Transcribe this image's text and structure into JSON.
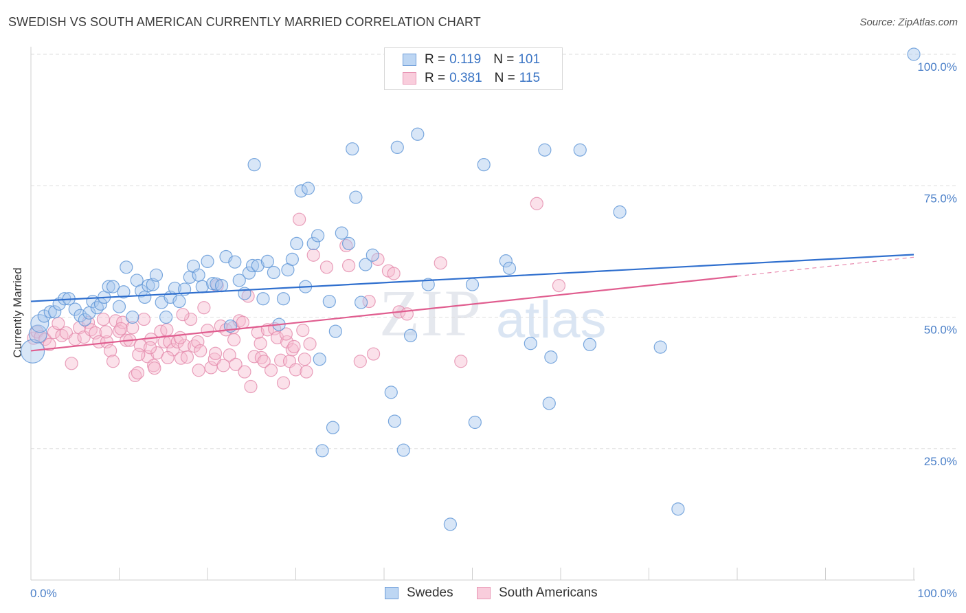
{
  "title": "SWEDISH VS SOUTH AMERICAN CURRENTLY MARRIED CORRELATION CHART",
  "source": "Source: ZipAtlas.com",
  "watermark": {
    "zip": "ZIP",
    "atlas": "atlas"
  },
  "legend": {
    "series1": {
      "r_label": "R =",
      "r_value": "0.119",
      "n_label": "N =",
      "n_value": "101"
    },
    "series2": {
      "r_label": "R =",
      "r_value": "0.381",
      "n_label": "N =",
      "n_value": "115"
    }
  },
  "bottom_legend": {
    "series1": "Swedes",
    "series2": "South Americans"
  },
  "colors": {
    "blue_fill": "#a8c8ee",
    "blue_stroke": "#5b93d6",
    "blue_line": "#2f6fce",
    "pink_fill": "#f6bcd0",
    "pink_stroke": "#e38aab",
    "pink_line": "#e05d8f",
    "tick_text": "#4a7fc8",
    "grid": "#dedede"
  },
  "chart_data": {
    "type": "scatter",
    "title": "SWEDISH VS SOUTH AMERICAN CURRENTLY MARRIED CORRELATION CHART",
    "xlabel": "",
    "ylabel": "Currently Married",
    "xlim": [
      0,
      100
    ],
    "ylim": [
      0,
      100
    ],
    "x_tick_labels": [
      "0.0%",
      "100.0%"
    ],
    "y_ticks": [
      25,
      50,
      75,
      100
    ],
    "y_tick_labels": [
      "25.0%",
      "50.0%",
      "75.0%",
      "100.0%"
    ],
    "grid": true,
    "series": [
      {
        "name": "Swedes",
        "color": "#5b93d6",
        "trend": {
          "x": [
            0,
            100
          ],
          "y": [
            53.0,
            61.9
          ]
        },
        "points": [
          [
            0.2,
            43.5
          ],
          [
            0.8,
            46.8
          ],
          [
            1.0,
            48.8
          ],
          [
            1.5,
            50.2
          ],
          [
            2.2,
            51.0
          ],
          [
            2.7,
            51.0
          ],
          [
            3.2,
            52.5
          ],
          [
            3.8,
            53.5
          ],
          [
            4.3,
            53.5
          ],
          [
            5.0,
            51.5
          ],
          [
            5.6,
            50.3
          ],
          [
            6.1,
            49.5
          ],
          [
            6.6,
            50.8
          ],
          [
            7.0,
            53.0
          ],
          [
            7.5,
            51.8
          ],
          [
            7.9,
            52.5
          ],
          [
            8.3,
            53.8
          ],
          [
            8.8,
            55.8
          ],
          [
            9.3,
            55.8
          ],
          [
            10.0,
            52.0
          ],
          [
            10.5,
            54.8
          ],
          [
            10.8,
            59.5
          ],
          [
            11.5,
            50.0
          ],
          [
            12.0,
            57.0
          ],
          [
            12.5,
            55.0
          ],
          [
            12.9,
            53.8
          ],
          [
            13.3,
            56.0
          ],
          [
            13.8,
            56.2
          ],
          [
            14.2,
            58.0
          ],
          [
            14.8,
            52.8
          ],
          [
            15.3,
            50.0
          ],
          [
            15.8,
            53.8
          ],
          [
            16.3,
            55.5
          ],
          [
            16.8,
            53.0
          ],
          [
            17.4,
            55.3
          ],
          [
            18.0,
            57.6
          ],
          [
            18.4,
            59.7
          ],
          [
            19.0,
            58.0
          ],
          [
            19.4,
            55.8
          ],
          [
            20.0,
            60.6
          ],
          [
            20.6,
            56.4
          ],
          [
            21.0,
            56.3
          ],
          [
            21.6,
            56.0
          ],
          [
            22.1,
            61.5
          ],
          [
            22.6,
            48.3
          ],
          [
            23.1,
            60.5
          ],
          [
            23.6,
            57.0
          ],
          [
            24.2,
            54.5
          ],
          [
            24.7,
            58.4
          ],
          [
            25.1,
            59.8
          ],
          [
            25.7,
            59.8
          ],
          [
            25.3,
            79.0
          ],
          [
            26.3,
            53.5
          ],
          [
            26.8,
            60.6
          ],
          [
            27.5,
            58.5
          ],
          [
            28.1,
            48.6
          ],
          [
            28.6,
            53.5
          ],
          [
            29.1,
            59.0
          ],
          [
            29.6,
            61.0
          ],
          [
            30.1,
            64.0
          ],
          [
            30.6,
            74.0
          ],
          [
            31.1,
            55.8
          ],
          [
            31.4,
            74.5
          ],
          [
            32.0,
            64.0
          ],
          [
            32.5,
            65.5
          ],
          [
            32.7,
            42.0
          ],
          [
            33.8,
            53.0
          ],
          [
            34.2,
            29.0
          ],
          [
            34.5,
            47.3
          ],
          [
            35.2,
            66.0
          ],
          [
            36.0,
            64.0
          ],
          [
            36.4,
            82.0
          ],
          [
            36.8,
            72.8
          ],
          [
            37.4,
            52.8
          ],
          [
            37.9,
            60.0
          ],
          [
            38.7,
            61.8
          ],
          [
            33.0,
            24.6
          ],
          [
            40.8,
            35.7
          ],
          [
            41.2,
            30.2
          ],
          [
            41.5,
            82.3
          ],
          [
            42.2,
            24.7
          ],
          [
            43.0,
            46.5
          ],
          [
            43.8,
            84.8
          ],
          [
            45.0,
            56.2
          ],
          [
            47.5,
            10.6
          ],
          [
            50.0,
            56.2
          ],
          [
            50.3,
            30.0
          ],
          [
            51.3,
            79.0
          ],
          [
            53.8,
            60.7
          ],
          [
            54.2,
            59.3
          ],
          [
            56.6,
            45.0
          ],
          [
            58.2,
            81.8
          ],
          [
            58.7,
            33.6
          ],
          [
            58.9,
            42.4
          ],
          [
            62.2,
            81.8
          ],
          [
            63.3,
            44.8
          ],
          [
            66.7,
            70.0
          ],
          [
            71.3,
            44.3
          ],
          [
            73.3,
            13.5
          ],
          [
            100.0,
            100.0
          ]
        ]
      },
      {
        "name": "South Americans",
        "color": "#e38aab",
        "trend": {
          "x": [
            0,
            80,
            100
          ],
          "y": [
            43.6,
            57.8,
            61.4
          ]
        },
        "points": [
          [
            0.3,
            46.0
          ],
          [
            0.7,
            47.2
          ],
          [
            1.1,
            46.3
          ],
          [
            1.6,
            45.8
          ],
          [
            2.1,
            44.8
          ],
          [
            2.6,
            47.1
          ],
          [
            3.1,
            48.8
          ],
          [
            3.5,
            46.5
          ],
          [
            4.0,
            47.0
          ],
          [
            4.6,
            41.2
          ],
          [
            5.0,
            45.8
          ],
          [
            5.5,
            48.0
          ],
          [
            6.0,
            46.2
          ],
          [
            6.5,
            49.0
          ],
          [
            6.8,
            47.6
          ],
          [
            7.3,
            47.0
          ],
          [
            7.7,
            45.3
          ],
          [
            8.2,
            49.6
          ],
          [
            8.6,
            45.3
          ],
          [
            9.0,
            43.6
          ],
          [
            9.3,
            41.6
          ],
          [
            9.6,
            49.3
          ],
          [
            10.0,
            47.3
          ],
          [
            10.4,
            49.0
          ],
          [
            10.8,
            45.6
          ],
          [
            11.2,
            45.6
          ],
          [
            11.5,
            48.0
          ],
          [
            11.8,
            38.9
          ],
          [
            12.1,
            39.4
          ],
          [
            12.4,
            44.6
          ],
          [
            12.8,
            49.6
          ],
          [
            13.2,
            42.5
          ],
          [
            13.6,
            45.8
          ],
          [
            13.9,
            40.8
          ],
          [
            14.3,
            43.2
          ],
          [
            14.7,
            47.3
          ],
          [
            15.1,
            45.3
          ],
          [
            15.4,
            47.6
          ],
          [
            15.7,
            45.3
          ],
          [
            16.1,
            43.8
          ],
          [
            16.6,
            45.3
          ],
          [
            17.0,
            42.2
          ],
          [
            17.4,
            44.6
          ],
          [
            17.7,
            42.4
          ],
          [
            18.1,
            49.6
          ],
          [
            18.5,
            44.5
          ],
          [
            18.9,
            45.3
          ],
          [
            19.2,
            43.6
          ],
          [
            19.6,
            51.8
          ],
          [
            20.0,
            47.5
          ],
          [
            20.4,
            40.4
          ],
          [
            20.8,
            42.0
          ],
          [
            21.1,
            56.0
          ],
          [
            21.5,
            48.3
          ],
          [
            21.8,
            40.8
          ],
          [
            22.1,
            47.6
          ],
          [
            22.5,
            42.8
          ],
          [
            22.9,
            48.0
          ],
          [
            23.2,
            41.0
          ],
          [
            23.6,
            49.3
          ],
          [
            24.0,
            49.0
          ],
          [
            24.2,
            39.6
          ],
          [
            24.6,
            54.0
          ],
          [
            24.9,
            36.8
          ],
          [
            25.3,
            42.5
          ],
          [
            25.7,
            47.1
          ],
          [
            26.1,
            42.3
          ],
          [
            26.4,
            41.6
          ],
          [
            26.8,
            47.6
          ],
          [
            27.2,
            39.9
          ],
          [
            27.6,
            47.8
          ],
          [
            27.9,
            46.1
          ],
          [
            28.3,
            41.8
          ],
          [
            28.6,
            37.5
          ],
          [
            29.0,
            45.3
          ],
          [
            29.3,
            41.6
          ],
          [
            29.6,
            43.8
          ],
          [
            30.0,
            40.0
          ],
          [
            30.4,
            68.6
          ],
          [
            30.8,
            47.5
          ],
          [
            31.2,
            39.6
          ],
          [
            31.6,
            44.9
          ],
          [
            32.0,
            61.8
          ],
          [
            33.5,
            59.5
          ],
          [
            35.7,
            63.6
          ],
          [
            36.0,
            59.8
          ],
          [
            37.3,
            41.6
          ],
          [
            38.3,
            53.0
          ],
          [
            38.8,
            43.0
          ],
          [
            39.3,
            61.0
          ],
          [
            40.5,
            58.8
          ],
          [
            41.1,
            58.3
          ],
          [
            41.7,
            51.0
          ],
          [
            42.6,
            50.6
          ],
          [
            46.4,
            60.3
          ],
          [
            48.7,
            41.6
          ],
          [
            57.3,
            71.6
          ],
          [
            59.8,
            56.0
          ],
          [
            13.5,
            44.2
          ],
          [
            19.0,
            39.9
          ],
          [
            15.5,
            42.3
          ],
          [
            23.0,
            45.7
          ],
          [
            28.9,
            46.8
          ],
          [
            31.0,
            42.0
          ],
          [
            8.5,
            47.2
          ],
          [
            10.2,
            47.8
          ],
          [
            26.0,
            45.0
          ],
          [
            20.9,
            43.1
          ],
          [
            17.2,
            50.5
          ],
          [
            12.2,
            42.9
          ],
          [
            29.8,
            44.4
          ],
          [
            14.0,
            40.3
          ],
          [
            16.9,
            46.1
          ]
        ]
      }
    ]
  }
}
